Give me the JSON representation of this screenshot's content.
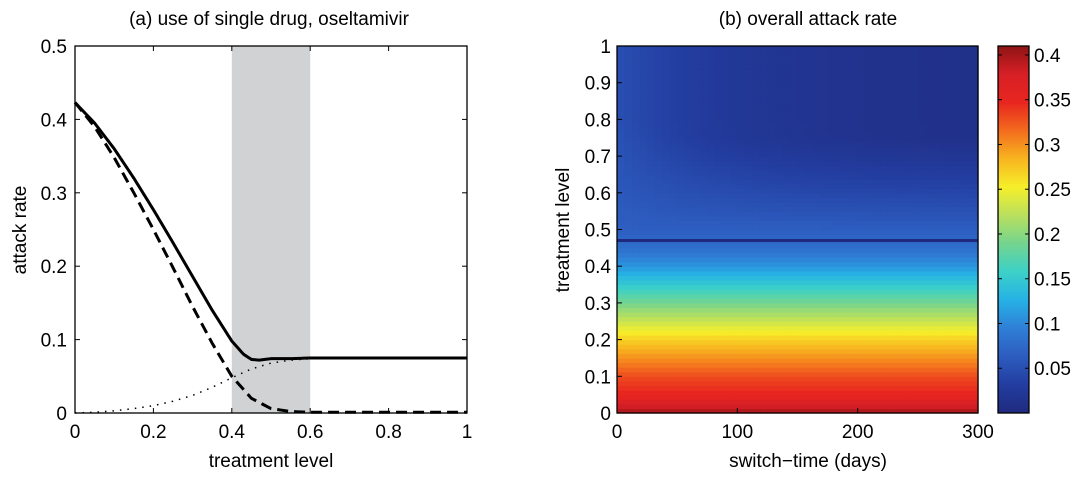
{
  "chart_data": [
    {
      "type": "line",
      "title": "(a) use of single drug, oseltamivir",
      "xlabel": "treatment level",
      "ylabel": "attack rate",
      "xlim": [
        0,
        1
      ],
      "ylim": [
        0,
        0.5
      ],
      "xticks": [
        "0",
        "0.2",
        "0.4",
        "0.6",
        "0.8",
        "1"
      ],
      "yticks": [
        "0",
        "0.1",
        "0.2",
        "0.3",
        "0.4",
        "0.5"
      ],
      "shaded_region": [
        0.4,
        0.6
      ],
      "shaded_color": "#d0d2d4",
      "series": [
        {
          "style": "solid",
          "x": [
            0,
            0.05,
            0.1,
            0.15,
            0.2,
            0.25,
            0.3,
            0.35,
            0.4,
            0.43,
            0.45,
            0.47,
            0.5,
            0.55,
            0.6,
            0.7,
            0.8,
            0.9,
            1.0
          ],
          "y": [
            0.423,
            0.395,
            0.36,
            0.32,
            0.277,
            0.232,
            0.186,
            0.14,
            0.098,
            0.08,
            0.073,
            0.072,
            0.074,
            0.074,
            0.075,
            0.075,
            0.075,
            0.075,
            0.075
          ]
        },
        {
          "style": "dashed",
          "x": [
            0,
            0.05,
            0.1,
            0.15,
            0.2,
            0.25,
            0.3,
            0.35,
            0.4,
            0.45,
            0.5,
            0.55,
            0.6,
            0.7,
            0.8,
            0.9,
            1.0
          ],
          "y": [
            0.423,
            0.39,
            0.348,
            0.3,
            0.25,
            0.198,
            0.145,
            0.095,
            0.05,
            0.02,
            0.006,
            0.002,
            0.001,
            0.001,
            0.001,
            0.001,
            0.001
          ]
        },
        {
          "style": "dotted",
          "x": [
            0,
            0.05,
            0.1,
            0.15,
            0.2,
            0.25,
            0.3,
            0.35,
            0.4,
            0.45,
            0.5,
            0.55,
            0.6,
            0.7,
            0.8,
            0.9,
            1.0
          ],
          "y": [
            0.0,
            0.001,
            0.003,
            0.006,
            0.01,
            0.016,
            0.024,
            0.035,
            0.048,
            0.06,
            0.068,
            0.072,
            0.074,
            0.075,
            0.075,
            0.075,
            0.075
          ]
        }
      ]
    },
    {
      "type": "heatmap",
      "title": "(b) overall attack rate",
      "xlabel": "switch−time (days)",
      "ylabel": "treatment level",
      "xlim": [
        0,
        300
      ],
      "ylim": [
        0,
        1
      ],
      "xticks": [
        "0",
        "100",
        "200",
        "300"
      ],
      "yticks": [
        "0",
        "0.1",
        "0.2",
        "0.3",
        "0.4",
        "0.5",
        "0.6",
        "0.7",
        "0.8",
        "0.9",
        "1"
      ],
      "colorbar": {
        "range": [
          0,
          0.41
        ],
        "ticks": [
          "0.05",
          "0.1",
          "0.15",
          "0.2",
          "0.25",
          "0.3",
          "0.35",
          "0.4"
        ],
        "colormap": [
          "#1f2a7e",
          "#233da0",
          "#2d5cbf",
          "#2f7fd6",
          "#26b1e6",
          "#3cd1c8",
          "#74d48f",
          "#b9e05e",
          "#f6ef2a",
          "#f8b51f",
          "#f36c1e",
          "#e8261f",
          "#d71f26",
          "#8e1414"
        ]
      },
      "attack_rate_profile": {
        "treatment_level": [
          0,
          0.02,
          0.05,
          0.1,
          0.15,
          0.2,
          0.25,
          0.3,
          0.35,
          0.4,
          0.45,
          0.5,
          0.6,
          0.7,
          0.8,
          0.9,
          1.0
        ],
        "value": [
          0.4,
          0.38,
          0.35,
          0.33,
          0.3,
          0.27,
          0.23,
          0.19,
          0.15,
          0.11,
          0.08,
          0.065,
          0.06,
          0.055,
          0.05,
          0.05,
          0.05
        ],
        "late_switch_floor": 0.01
      },
      "horizontal_line_level": 0.47
    }
  ]
}
